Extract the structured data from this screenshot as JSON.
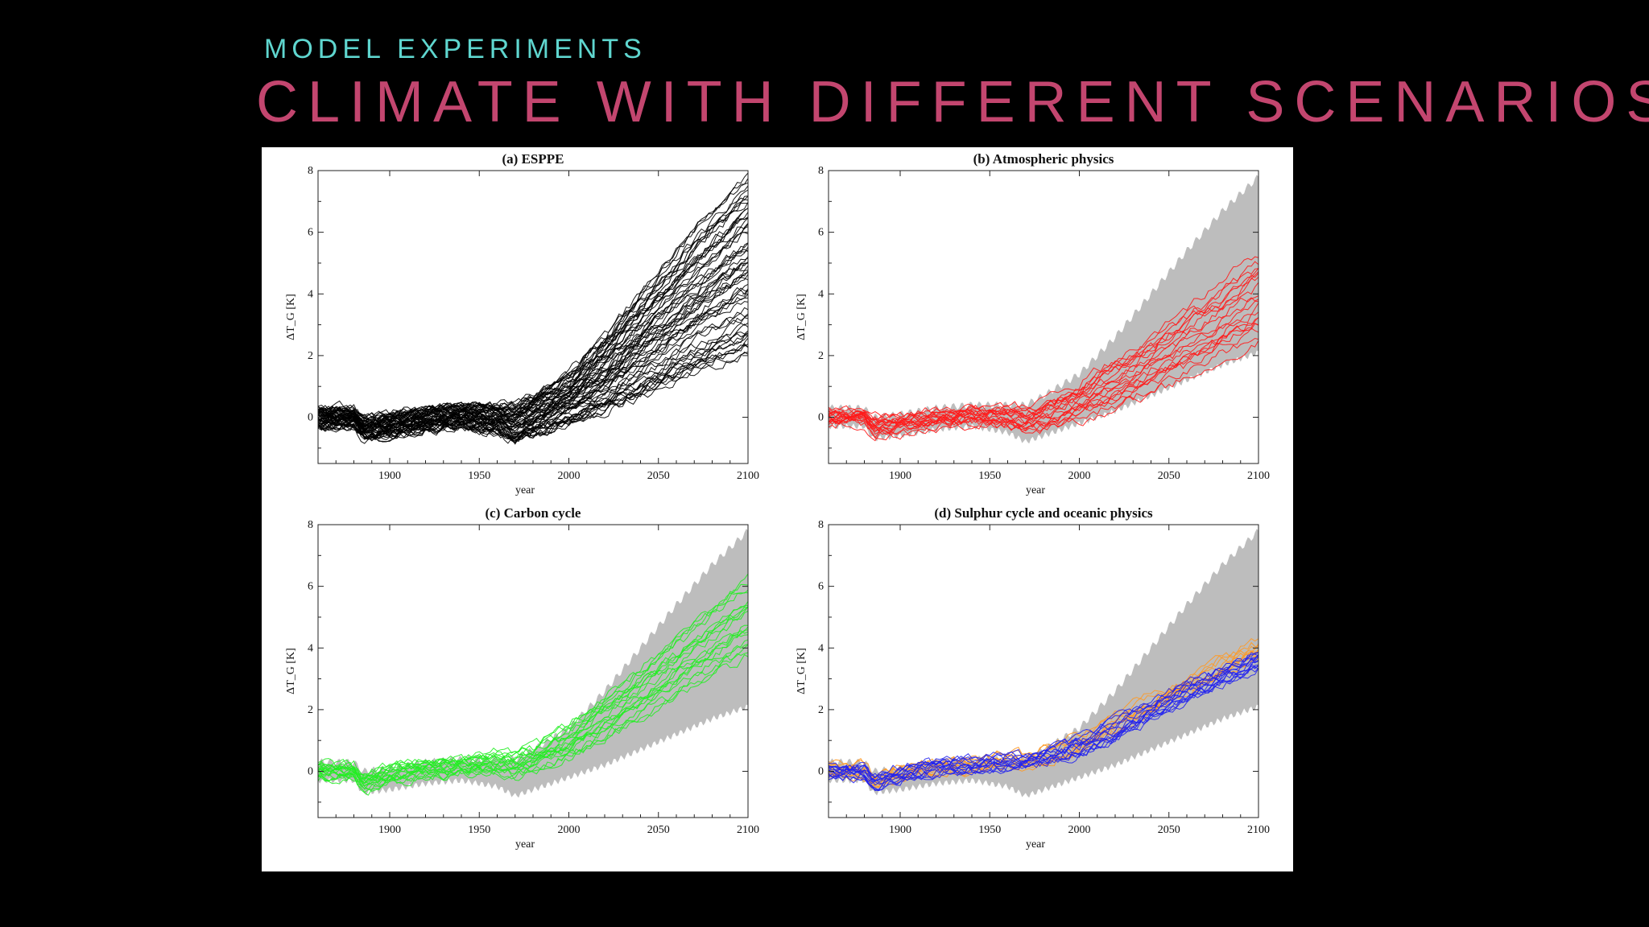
{
  "slide": {
    "subtitle": "MODEL EXPERIMENTS",
    "title": "CLIMATE WITH DIFFERENT SCENARIOS"
  },
  "colors": {
    "background": "#000000",
    "subtitle": "#5fd6cf",
    "title": "#c3466f",
    "envelope": "#bdbdbd"
  },
  "chart_data": [
    {
      "type": "line",
      "title": "(a) ESPPE",
      "xlabel": "year",
      "ylabel": "ΔT_G [K]",
      "xlim": [
        1860,
        2100
      ],
      "ylim": [
        -1.5,
        8
      ],
      "xticks": [
        1900,
        1950,
        2000,
        2050,
        2100
      ],
      "yticks": [
        0,
        2,
        4,
        6,
        8
      ],
      "envelope": false,
      "series": [
        {
          "color": "#000000",
          "count": 60,
          "x": [
            1860,
            1880,
            1885,
            1900,
            1920,
            1940,
            1960,
            1970,
            1980,
            2000,
            2020,
            2040,
            2060,
            2080,
            2100
          ],
          "low": [
            -0.3,
            -0.3,
            -0.7,
            -0.6,
            -0.4,
            -0.3,
            -0.5,
            -0.8,
            -0.6,
            -0.2,
            0.2,
            0.7,
            1.2,
            1.7,
            2.1
          ],
          "high": [
            0.3,
            0.3,
            0.0,
            0.1,
            0.3,
            0.4,
            0.4,
            0.4,
            0.7,
            1.4,
            2.6,
            4.0,
            5.4,
            6.7,
            7.8
          ]
        }
      ]
    },
    {
      "type": "line",
      "title": "(b) Atmospheric physics",
      "xlabel": "year",
      "ylabel": "ΔT_G [K]",
      "xlim": [
        1860,
        2100
      ],
      "ylim": [
        -1.5,
        8
      ],
      "xticks": [
        1900,
        1950,
        2000,
        2050,
        2100
      ],
      "yticks": [
        0,
        2,
        4,
        6,
        8
      ],
      "envelope": true,
      "series": [
        {
          "color": "#ff1a1a",
          "count": 20,
          "x": [
            1860,
            1880,
            1885,
            1900,
            1920,
            1940,
            1960,
            1970,
            1980,
            2000,
            2020,
            2040,
            2060,
            2080,
            2100
          ],
          "low": [
            -0.2,
            -0.2,
            -0.6,
            -0.5,
            -0.3,
            -0.2,
            -0.3,
            -0.5,
            -0.4,
            -0.1,
            0.3,
            0.8,
            1.3,
            1.9,
            2.4
          ],
          "high": [
            0.2,
            0.2,
            0.0,
            0.1,
            0.2,
            0.3,
            0.3,
            0.3,
            0.5,
            1.1,
            1.9,
            2.7,
            3.5,
            4.4,
            5.3
          ]
        }
      ]
    },
    {
      "type": "line",
      "title": "(c) Carbon cycle",
      "xlabel": "year",
      "ylabel": "ΔT_G [K]",
      "xlim": [
        1860,
        2100
      ],
      "ylim": [
        -1.5,
        8
      ],
      "xticks": [
        1900,
        1950,
        2000,
        2050,
        2100
      ],
      "yticks": [
        0,
        2,
        4,
        6,
        8
      ],
      "envelope": true,
      "series": [
        {
          "color": "#22ee22",
          "count": 20,
          "x": [
            1860,
            1880,
            1885,
            1900,
            1920,
            1940,
            1960,
            1970,
            1980,
            2000,
            2020,
            2040,
            2060,
            2080,
            2100
          ],
          "low": [
            -0.2,
            -0.2,
            -0.7,
            -0.4,
            -0.2,
            -0.1,
            0.0,
            -0.2,
            0.0,
            0.4,
            1.0,
            1.7,
            2.4,
            3.1,
            3.7
          ],
          "high": [
            0.2,
            0.2,
            -0.1,
            0.2,
            0.3,
            0.4,
            0.6,
            0.6,
            0.8,
            1.5,
            2.4,
            3.3,
            4.3,
            5.3,
            6.2
          ]
        }
      ]
    },
    {
      "type": "line",
      "title": "(d) Sulphur cycle and oceanic physics",
      "xlabel": "year",
      "ylabel": "ΔT_G [K]",
      "xlim": [
        1860,
        2100
      ],
      "ylim": [
        -1.5,
        8
      ],
      "xticks": [
        1900,
        1950,
        2000,
        2050,
        2100
      ],
      "yticks": [
        0,
        2,
        4,
        6,
        8
      ],
      "envelope": true,
      "series": [
        {
          "color": "#ff9922",
          "count": 10,
          "x": [
            1860,
            1880,
            1885,
            1900,
            1920,
            1940,
            1960,
            1970,
            1980,
            2000,
            2020,
            2040,
            2060,
            2080,
            2100
          ],
          "low": [
            -0.2,
            -0.2,
            -0.5,
            -0.3,
            -0.1,
            0.0,
            0.1,
            0.1,
            0.2,
            0.6,
            1.2,
            1.8,
            2.5,
            3.1,
            3.6
          ],
          "high": [
            0.3,
            0.3,
            0.0,
            0.2,
            0.3,
            0.4,
            0.6,
            0.6,
            0.8,
            1.2,
            1.8,
            2.5,
            3.1,
            3.7,
            4.3
          ]
        },
        {
          "color": "#2222ee",
          "count": 15,
          "x": [
            1860,
            1880,
            1885,
            1900,
            1920,
            1940,
            1960,
            1970,
            1980,
            2000,
            2020,
            2040,
            2060,
            2080,
            2100
          ],
          "low": [
            -0.2,
            -0.2,
            -0.6,
            -0.3,
            -0.1,
            0.0,
            0.1,
            0.1,
            0.2,
            0.5,
            1.0,
            1.6,
            2.2,
            2.8,
            3.3
          ],
          "high": [
            0.2,
            0.2,
            -0.1,
            0.2,
            0.3,
            0.4,
            0.5,
            0.5,
            0.7,
            1.1,
            1.7,
            2.3,
            2.9,
            3.4,
            3.9
          ]
        }
      ]
    }
  ],
  "envelope_band": {
    "x": [
      1860,
      1880,
      1885,
      1900,
      1920,
      1940,
      1960,
      1970,
      1980,
      2000,
      2020,
      2040,
      2060,
      2080,
      2100
    ],
    "low": [
      -0.3,
      -0.3,
      -0.7,
      -0.6,
      -0.4,
      -0.3,
      -0.5,
      -0.8,
      -0.6,
      -0.2,
      0.2,
      0.7,
      1.2,
      1.7,
      2.1
    ],
    "high": [
      0.3,
      0.3,
      0.0,
      0.1,
      0.3,
      0.4,
      0.4,
      0.4,
      0.7,
      1.4,
      2.6,
      4.0,
      5.4,
      6.7,
      7.8
    ]
  }
}
